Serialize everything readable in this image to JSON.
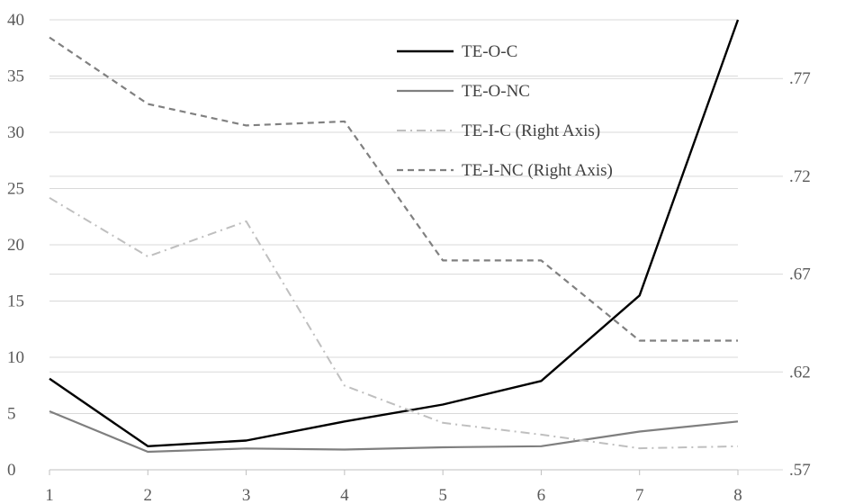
{
  "chart_data": {
    "type": "line",
    "x": [
      1,
      2,
      3,
      4,
      5,
      6,
      7,
      8
    ],
    "y_left": {
      "lim": [
        0,
        40
      ],
      "ticks": [
        0,
        5,
        10,
        15,
        20,
        25,
        30,
        35,
        40
      ]
    },
    "y_right": {
      "lim": [
        0.57,
        0.8
      ],
      "ticks": [
        0.57,
        0.62,
        0.67,
        0.72,
        0.77
      ]
    },
    "grid": true,
    "legend_position": "top-right",
    "series": [
      {
        "name": "TE-O-C",
        "axis": "left",
        "style": "solid",
        "color": "#000000",
        "values": [
          8.1,
          2.1,
          2.6,
          4.3,
          5.8,
          7.9,
          15.5,
          40.0
        ]
      },
      {
        "name": "TE-O-NC",
        "axis": "left",
        "style": "solid",
        "color": "#7f7f7f",
        "values": [
          5.2,
          1.6,
          1.9,
          1.8,
          2.0,
          2.1,
          3.4,
          4.3
        ]
      },
      {
        "name": "TE-I-C (Right Axis)",
        "axis": "right",
        "style": "dashdot",
        "color": "#bfbfbf",
        "values": [
          0.709,
          0.679,
          0.697,
          0.613,
          0.594,
          0.588,
          0.581,
          0.582
        ]
      },
      {
        "name": "TE-I-NC (Right Axis)",
        "axis": "right",
        "style": "dashed",
        "color": "#808080",
        "values": [
          0.791,
          0.757,
          0.746,
          0.748,
          0.677,
          0.677,
          0.636,
          0.636
        ]
      }
    ]
  }
}
